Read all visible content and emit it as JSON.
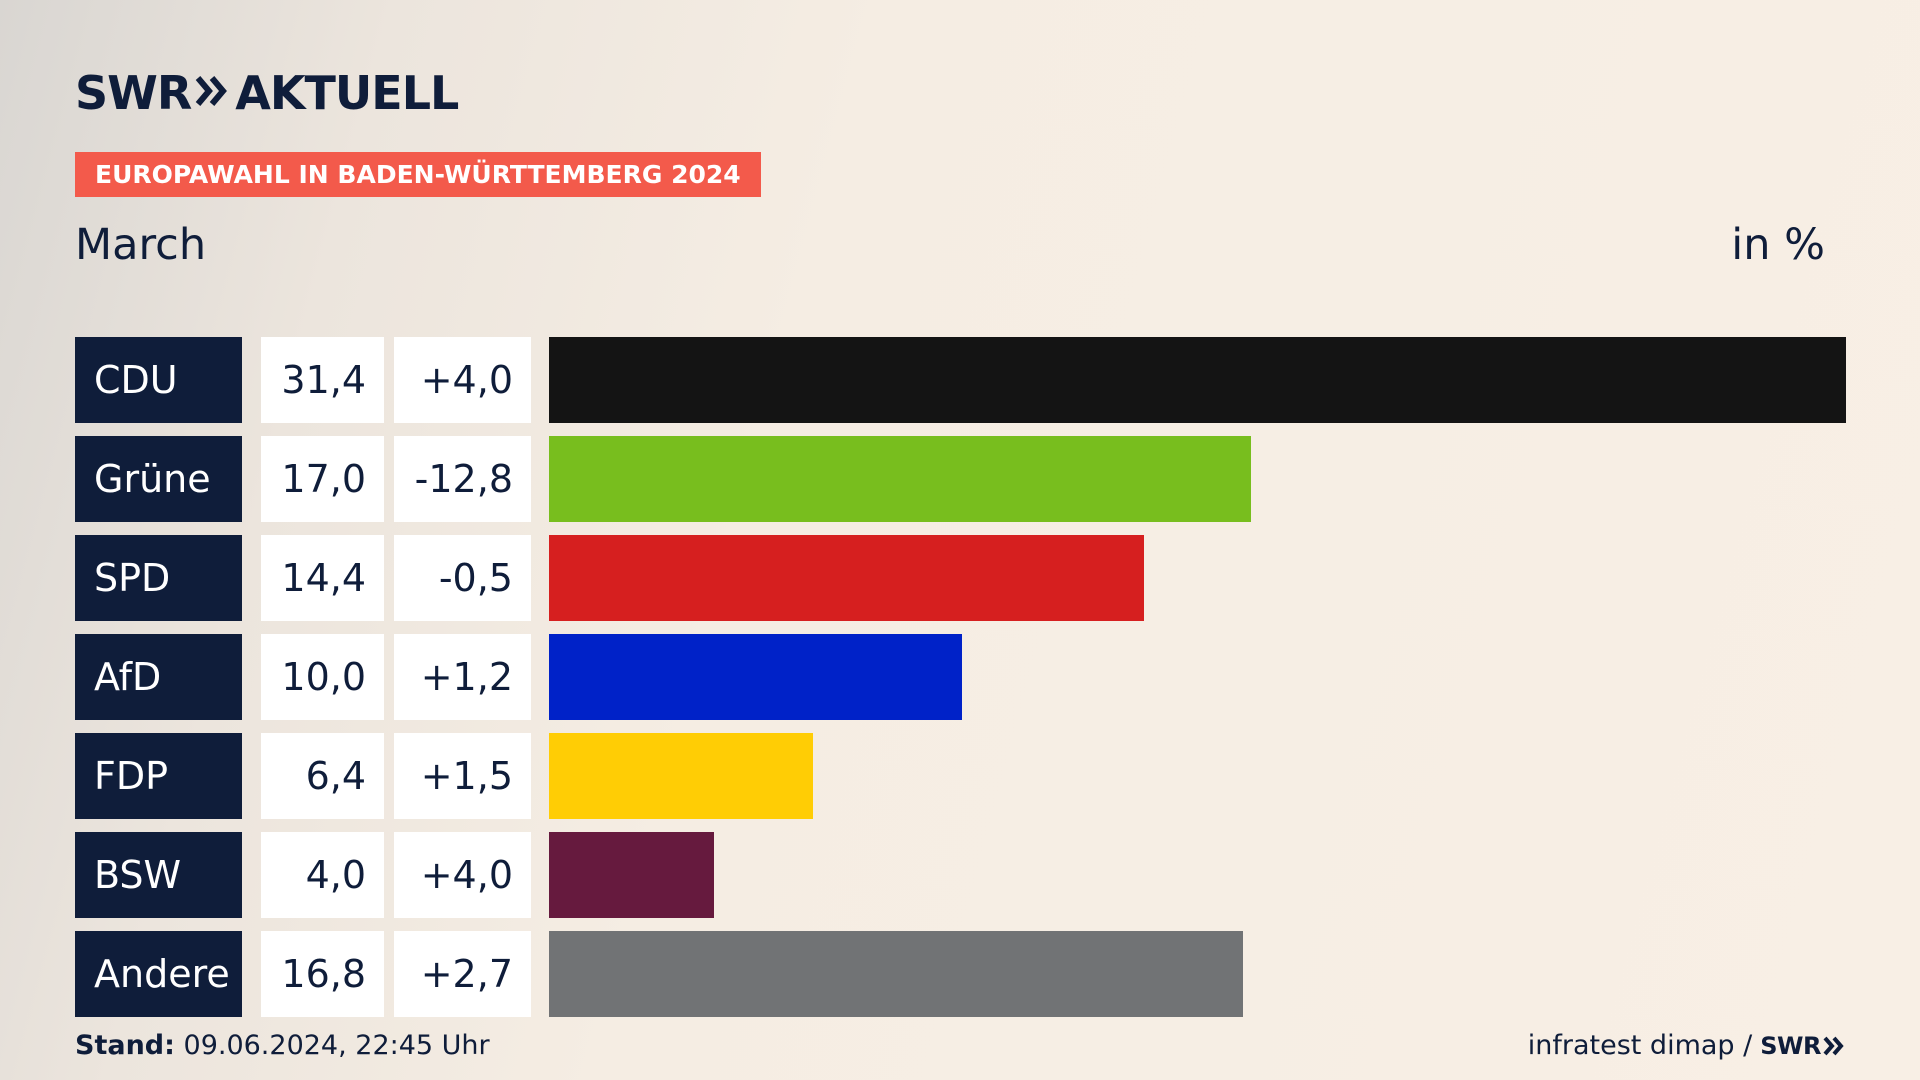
{
  "header": {
    "logo_swr": "SWR",
    "logo_aktuell": "AKTUELL",
    "badge": "EUROPAWAHL IN BADEN-WÜRTTEMBERG 2024",
    "region": "March",
    "unit": "in %"
  },
  "chart_data": {
    "type": "bar",
    "orientation": "horizontal",
    "categories": [
      "CDU",
      "Grüne",
      "SPD",
      "AfD",
      "FDP",
      "BSW",
      "Andere"
    ],
    "values": [
      31.4,
      17.0,
      14.4,
      10.0,
      6.4,
      4.0,
      16.8
    ],
    "value_labels": [
      "31,4",
      "17,0",
      "14,4",
      "10,0",
      "6,4",
      "4,0",
      "16,8"
    ],
    "diff_labels": [
      "+4,0",
      "-12,8",
      "-0,5",
      "+1,2",
      "+1,5",
      "+4,0",
      "+2,7"
    ],
    "colors": [
      "#141414",
      "#78be1e",
      "#d61f1f",
      "#0022c8",
      "#ffcd05",
      "#661a3e",
      "#717375"
    ],
    "xlim": [
      0,
      31.4
    ],
    "unit": "in %"
  },
  "footer": {
    "stand_label": "Stand:",
    "stand_value": "09.06.2024, 22:45 Uhr",
    "source": "infratest dimap /",
    "source_logo": "SWR"
  },
  "colors": {
    "navy": "#0f1d3a",
    "badge": "#f35a4b"
  }
}
